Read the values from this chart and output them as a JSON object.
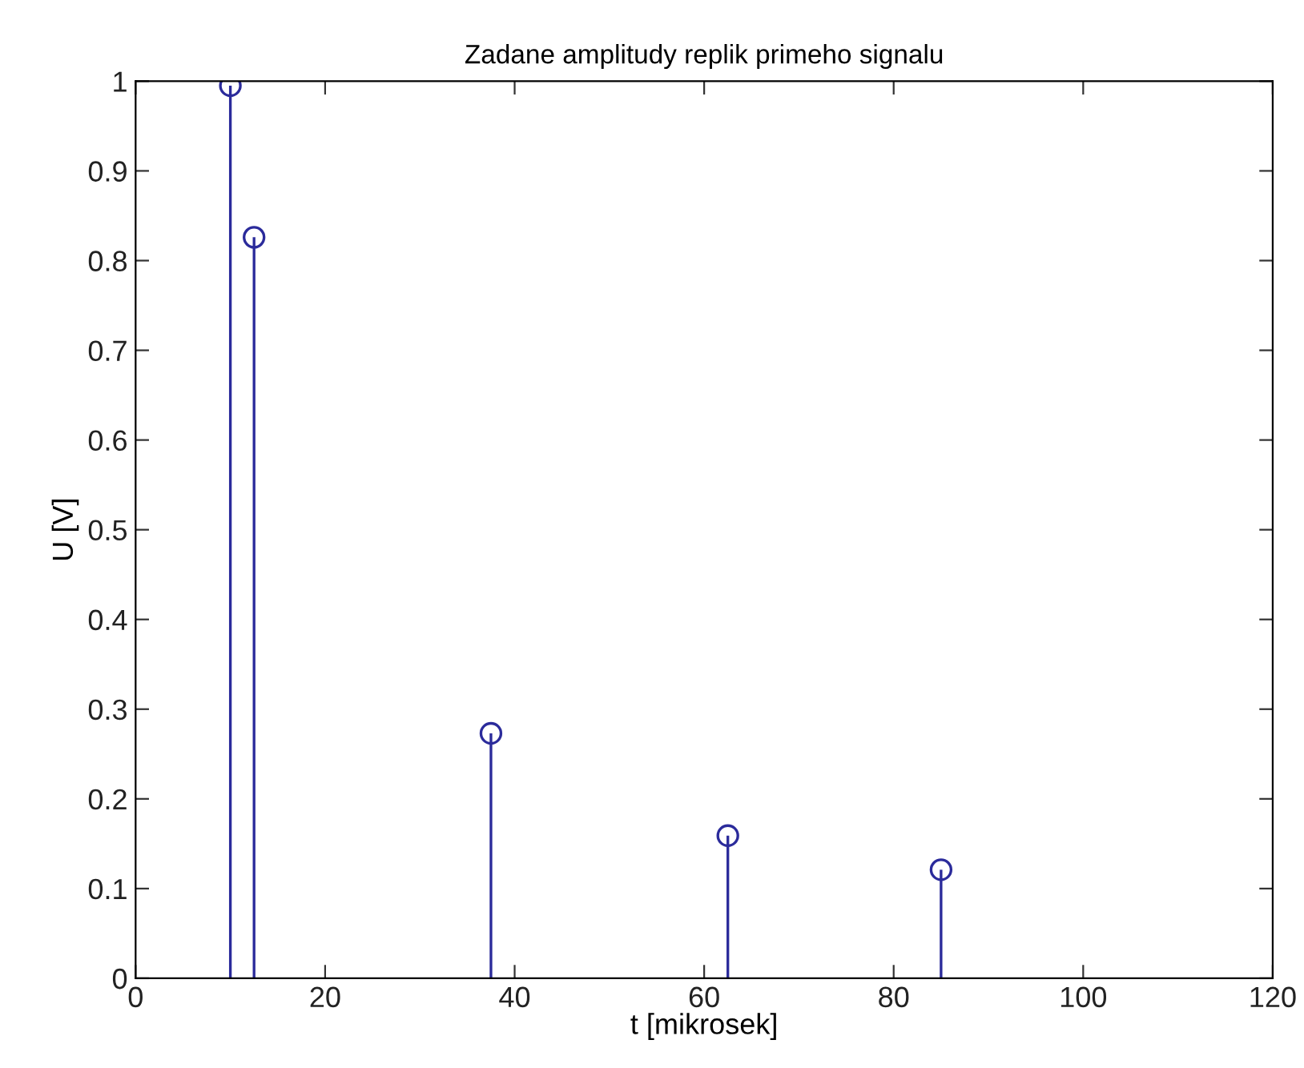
{
  "chart_data": {
    "type": "lollipop",
    "title": "Zadane amplitudy replik primeho signalu",
    "xlabel": "t [mikrosek]",
    "ylabel": "U [V]",
    "x": [
      10,
      12.5,
      37.5,
      62.5,
      85
    ],
    "values": [
      0.995,
      0.826,
      0.273,
      0.159,
      0.121
    ],
    "color": "#2b2b9b",
    "marker": "circle",
    "grid": false,
    "xlim": [
      0,
      120
    ],
    "xticks": [
      0,
      20,
      40,
      60,
      80,
      100,
      120
    ],
    "ylim": [
      0,
      1
    ],
    "yticks": [
      0,
      0.1,
      0.2,
      0.3,
      0.4,
      0.5,
      0.6,
      0.7,
      0.8,
      0.9,
      1
    ]
  }
}
